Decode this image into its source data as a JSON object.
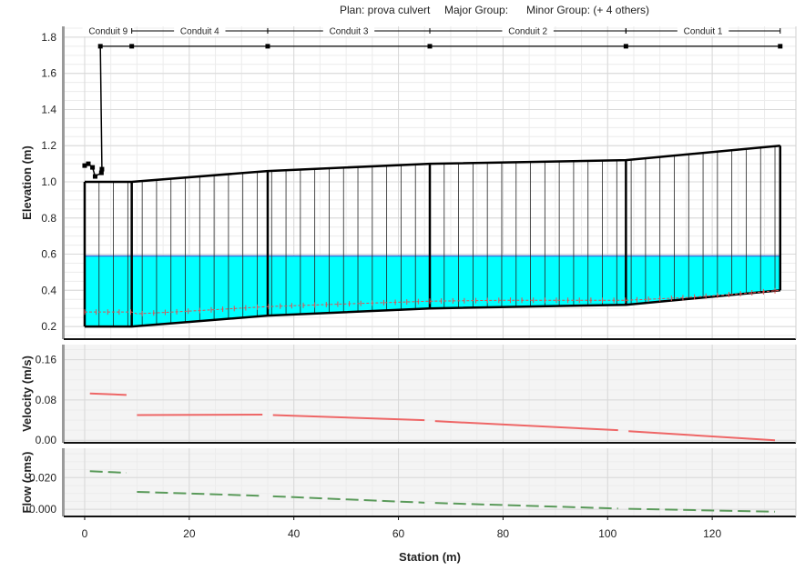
{
  "header": {
    "plan": "Plan: prova culvert",
    "major_group": "Major Group:",
    "minor_group": "Minor Group: (+ 4 others)"
  },
  "chart_data": [
    {
      "type": "line",
      "panel": "profile",
      "ylabel": "Elevation (m)",
      "xlabel": "",
      "xlim": [
        -4,
        136
      ],
      "ylim": [
        0.13,
        1.86
      ],
      "yticks": [
        "0.2",
        "0.4",
        "0.6",
        "0.8",
        "1.0",
        "1.2",
        "1.4",
        "1.6",
        "1.8"
      ],
      "xticks": [
        "0",
        "20",
        "40",
        "60",
        "80",
        "100",
        "120"
      ],
      "grid": true,
      "conduits": [
        {
          "name": "Conduit 9",
          "x_start": 0,
          "x_end": 9
        },
        {
          "name": "Conduit 4",
          "x_start": 9,
          "x_end": 35
        },
        {
          "name": "Conduit 3",
          "x_start": 35,
          "x_end": 66
        },
        {
          "name": "Conduit 2",
          "x_start": 66,
          "x_end": 103.5
        },
        {
          "name": "Conduit 1",
          "x_start": 103.5,
          "x_end": 133
        }
      ],
      "nodes_x": [
        0,
        9,
        35,
        66,
        103.5,
        133
      ],
      "crown": [
        1.0,
        1.0,
        1.06,
        1.1,
        1.12,
        1.2
      ],
      "invert": [
        0.2,
        0.2,
        0.26,
        0.3,
        0.32,
        0.4
      ],
      "water_surface": 0.59,
      "hgl": {
        "x": [
          0,
          9,
          10,
          20,
          35,
          50,
          66,
          80,
          95,
          103.5,
          115,
          125,
          133
        ],
        "y": [
          0.28,
          0.28,
          0.27,
          0.285,
          0.31,
          0.325,
          0.34,
          0.345,
          0.345,
          0.345,
          0.36,
          0.38,
          0.4
        ]
      },
      "node_level": 1.75,
      "link_path": {
        "x": [
          0,
          0.7,
          1.5,
          2,
          3.2,
          3.3,
          3.0
        ],
        "y": [
          1.09,
          1.1,
          1.08,
          1.03,
          1.05,
          1.07,
          1.75
        ]
      },
      "colors": {
        "water": "#00ffff",
        "water_line": "#3a6fd8",
        "hgl": "#e05050",
        "structure": "#000000"
      }
    },
    {
      "type": "line",
      "panel": "velocity",
      "ylabel": "Velocity (m/s)",
      "xlabel": "",
      "xlim": [
        -4,
        136
      ],
      "ylim": [
        -0.005,
        0.19
      ],
      "yticks": [
        "0.00",
        "0.08",
        "0.16"
      ],
      "grid": true,
      "segments": [
        {
          "x": [
            1,
            8
          ],
          "y": [
            0.093,
            0.09
          ]
        },
        {
          "x": [
            10,
            34
          ],
          "y": [
            0.05,
            0.051
          ]
        },
        {
          "x": [
            36,
            65
          ],
          "y": [
            0.05,
            0.04
          ]
        },
        {
          "x": [
            67,
            102
          ],
          "y": [
            0.038,
            0.02
          ]
        },
        {
          "x": [
            104,
            132
          ],
          "y": [
            0.018,
            0.0
          ]
        }
      ],
      "color": "#ee6666"
    },
    {
      "type": "line",
      "panel": "flow",
      "ylabel": "Flow (cms)",
      "xlabel": "Station (m)",
      "xlim": [
        -4,
        136
      ],
      "ylim": [
        -0.0045,
        0.0385
      ],
      "yticks": [
        "0.000",
        "0.020"
      ],
      "xticks": [
        "0",
        "20",
        "40",
        "60",
        "80",
        "100",
        "120"
      ],
      "grid": true,
      "segments": [
        {
          "x": [
            1,
            8
          ],
          "y": [
            0.024,
            0.023
          ]
        },
        {
          "x": [
            10,
            34
          ],
          "y": [
            0.011,
            0.0085
          ]
        },
        {
          "x": [
            36,
            65
          ],
          "y": [
            0.0082,
            0.0042
          ]
        },
        {
          "x": [
            67,
            102
          ],
          "y": [
            0.004,
            0.0005
          ]
        },
        {
          "x": [
            104,
            132
          ],
          "y": [
            0.0003,
            -0.0015
          ]
        }
      ],
      "color": "#5a9a5a"
    }
  ]
}
